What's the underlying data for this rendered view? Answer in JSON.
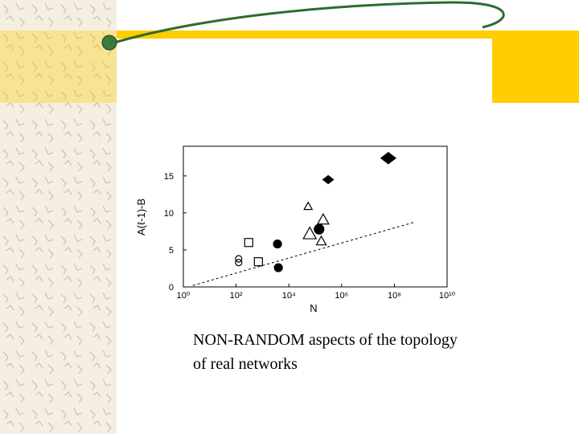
{
  "caption": [
    "NON-RANDOM aspects of the topology",
    "of real networks"
  ],
  "chart_data": {
    "type": "scatter",
    "xlabel": "N",
    "ylabel": "A(ℓ-1)-B",
    "xscale": "log",
    "xlim": [
      1,
      10000000000
    ],
    "xticks": [
      {
        "value": 1,
        "label": "10⁰"
      },
      {
        "value": 100,
        "label": "10²"
      },
      {
        "value": 10000,
        "label": "10⁴"
      },
      {
        "value": 1000000,
        "label": "10⁶"
      },
      {
        "value": 100000000,
        "label": "10⁸"
      },
      {
        "value": 10000000000,
        "label": "10¹⁰"
      }
    ],
    "ylim": [
      0,
      19
    ],
    "yticks": [
      0,
      5,
      10,
      15
    ],
    "series": [
      {
        "marker": "diamond",
        "filled": true,
        "color": "#000000",
        "sizes": [
          7,
          5
        ],
        "x": [
          59000000,
          310000
        ],
        "values": [
          17.4,
          14.5
        ]
      },
      {
        "marker": "circle",
        "filled": true,
        "color": "#000000",
        "sizes": [
          6,
          5,
          5
        ],
        "x": [
          140000,
          3700,
          4000
        ],
        "values": [
          7.8,
          5.8,
          2.6
        ]
      },
      {
        "marker": "triangle",
        "filled": false,
        "color": "#000000",
        "sizes": [
          5,
          7,
          8,
          6
        ],
        "x": [
          54000,
          200000,
          62000,
          170000
        ],
        "values": [
          10.9,
          9.1,
          7.2,
          6.2
        ]
      },
      {
        "marker": "square",
        "filled": false,
        "color": "#000000",
        "sizes": [
          5,
          5
        ],
        "x": [
          300,
          700
        ],
        "values": [
          6.0,
          3.4
        ]
      },
      {
        "marker": "circle",
        "filled": false,
        "color": "#000000",
        "sizes": [
          4,
          4
        ],
        "x": [
          125,
          125
        ],
        "values": [
          3.8,
          3.3
        ]
      },
      {
        "marker": "none",
        "style": "dashed",
        "color": "#000000",
        "x": [
          2.3,
          520000000
        ],
        "values": [
          0.2,
          8.7
        ]
      }
    ]
  }
}
